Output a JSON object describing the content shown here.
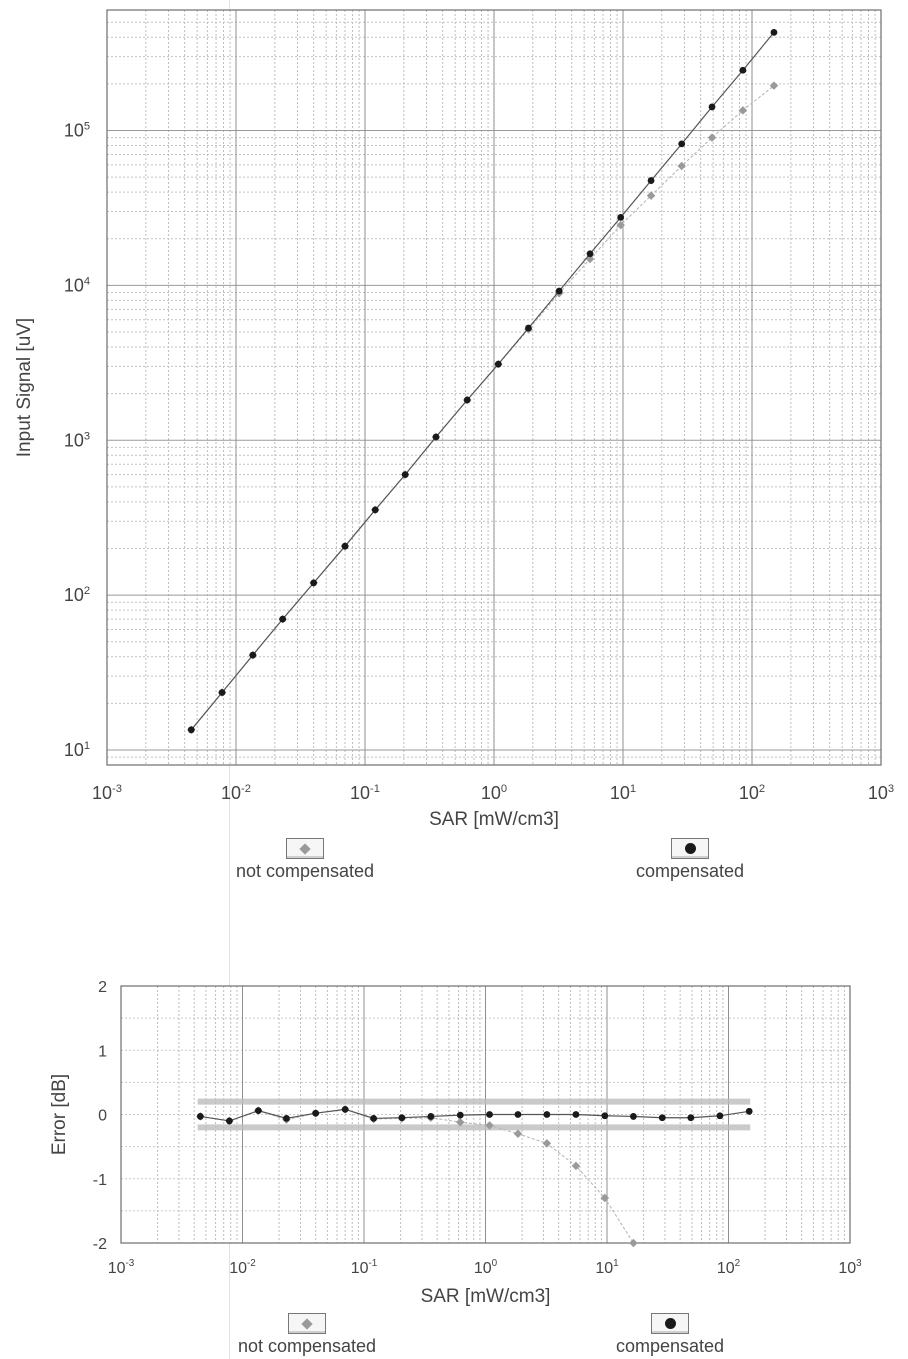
{
  "chart_data": [
    {
      "type": "scatter",
      "xlabel": "SAR [mW/cm3]",
      "ylabel": "Input Signal [uV]",
      "x_scale": "log",
      "y_scale": "log",
      "xlim": [
        0.001,
        1000
      ],
      "ylim": [
        8,
        600000
      ],
      "x_ticks": [
        {
          "value": 0.001,
          "base": "10",
          "exp": "-3"
        },
        {
          "value": 0.01,
          "base": "10",
          "exp": "-2"
        },
        {
          "value": 0.1,
          "base": "10",
          "exp": "-1"
        },
        {
          "value": 1,
          "base": "10",
          "exp": "0"
        },
        {
          "value": 10,
          "base": "10",
          "exp": "1"
        },
        {
          "value": 100,
          "base": "10",
          "exp": "2"
        },
        {
          "value": 1000,
          "base": "10",
          "exp": "3"
        }
      ],
      "y_ticks": [
        {
          "value": 10,
          "base": "10",
          "exp": "1"
        },
        {
          "value": 100,
          "base": "10",
          "exp": "2"
        },
        {
          "value": 1000,
          "base": "10",
          "exp": "3"
        },
        {
          "value": 10000,
          "base": "10",
          "exp": "4"
        },
        {
          "value": 100000,
          "base": "10",
          "exp": "5"
        }
      ],
      "grid": true,
      "legend": "below",
      "series": [
        {
          "name": "not compensated",
          "marker": "diamond",
          "color": "#9a9a9a",
          "points": [
            [
              0.0045,
              13.5
            ],
            [
              0.0078,
              23.5
            ],
            [
              0.0135,
              41
            ],
            [
              0.023,
              70
            ],
            [
              0.04,
              120
            ],
            [
              0.07,
              207
            ],
            [
              0.12,
              355
            ],
            [
              0.205,
              600
            ],
            [
              0.355,
              1050
            ],
            [
              0.62,
              1820
            ],
            [
              1.08,
              3100
            ],
            [
              1.85,
              5200
            ],
            [
              3.2,
              8900
            ],
            [
              5.55,
              14800
            ],
            [
              9.6,
              24500
            ],
            [
              16.5,
              38000
            ],
            [
              28.5,
              59000
            ],
            [
              49,
              90000
            ],
            [
              85,
              135000
            ],
            [
              148,
              195000
            ]
          ]
        },
        {
          "name": "compensated",
          "marker": "dot",
          "color": "#1a1a1a",
          "points": [
            [
              0.0045,
              13.5
            ],
            [
              0.0078,
              23.5
            ],
            [
              0.0135,
              41
            ],
            [
              0.023,
              70
            ],
            [
              0.04,
              120
            ],
            [
              0.07,
              207
            ],
            [
              0.12,
              355
            ],
            [
              0.205,
              600
            ],
            [
              0.355,
              1050
            ],
            [
              0.62,
              1820
            ],
            [
              1.08,
              3100
            ],
            [
              1.85,
              5300
            ],
            [
              3.2,
              9200
            ],
            [
              5.55,
              16000
            ],
            [
              9.6,
              27500
            ],
            [
              16.5,
              47500
            ],
            [
              28.5,
              82000
            ],
            [
              49,
              142000
            ],
            [
              85,
              245000
            ],
            [
              148,
              430000
            ]
          ]
        }
      ]
    },
    {
      "type": "scatter",
      "xlabel": "SAR [mW/cm3]",
      "ylabel": "Error [dB]",
      "x_scale": "log",
      "xlim": [
        0.001,
        1000
      ],
      "ylim": [
        -2,
        2
      ],
      "x_ticks": [
        {
          "value": 0.001,
          "base": "10",
          "exp": "-3"
        },
        {
          "value": 0.01,
          "base": "10",
          "exp": "-2"
        },
        {
          "value": 0.1,
          "base": "10",
          "exp": "-1"
        },
        {
          "value": 1,
          "base": "10",
          "exp": "0"
        },
        {
          "value": 10,
          "base": "10",
          "exp": "1"
        },
        {
          "value": 100,
          "base": "10",
          "exp": "2"
        },
        {
          "value": 1000,
          "base": "10",
          "exp": "3"
        }
      ],
      "y_ticks": [
        "2",
        "1",
        "0",
        "-1",
        "-2"
      ],
      "grid": true,
      "legend": "below",
      "tolerance_band": [
        -0.2,
        0.2
      ],
      "series": [
        {
          "name": "not compensated",
          "marker": "diamond",
          "color": "#9a9a9a",
          "points": [
            [
              0.0045,
              -0.03
            ],
            [
              0.0078,
              -0.1
            ],
            [
              0.0135,
              0.06
            ],
            [
              0.023,
              -0.08
            ],
            [
              0.04,
              0.02
            ],
            [
              0.07,
              0.08
            ],
            [
              0.12,
              -0.07
            ],
            [
              0.205,
              -0.06
            ],
            [
              0.355,
              -0.05
            ],
            [
              0.62,
              -0.12
            ],
            [
              1.08,
              -0.17
            ],
            [
              1.85,
              -0.3
            ],
            [
              3.2,
              -0.45
            ],
            [
              5.55,
              -0.8
            ],
            [
              9.6,
              -1.3
            ],
            [
              16.5,
              -2.0
            ]
          ]
        },
        {
          "name": "compensated",
          "marker": "dot",
          "color": "#1a1a1a",
          "points": [
            [
              0.0045,
              -0.03
            ],
            [
              0.0078,
              -0.1
            ],
            [
              0.0135,
              0.06
            ],
            [
              0.023,
              -0.06
            ],
            [
              0.04,
              0.02
            ],
            [
              0.07,
              0.08
            ],
            [
              0.12,
              -0.06
            ],
            [
              0.205,
              -0.05
            ],
            [
              0.355,
              -0.03
            ],
            [
              0.62,
              -0.01
            ],
            [
              1.08,
              0.0
            ],
            [
              1.85,
              0.0
            ],
            [
              3.2,
              0.0
            ],
            [
              5.55,
              0.0
            ],
            [
              9.6,
              -0.02
            ],
            [
              16.5,
              -0.03
            ],
            [
              28.5,
              -0.05
            ],
            [
              49,
              -0.05
            ],
            [
              85,
              -0.02
            ],
            [
              148,
              0.05
            ]
          ]
        }
      ]
    }
  ],
  "legends": {
    "top": {
      "not_compensated": "not compensated",
      "compensated": "compensated"
    },
    "bottom": {
      "not_compensated": "not compensated",
      "compensated": "compensated"
    }
  }
}
